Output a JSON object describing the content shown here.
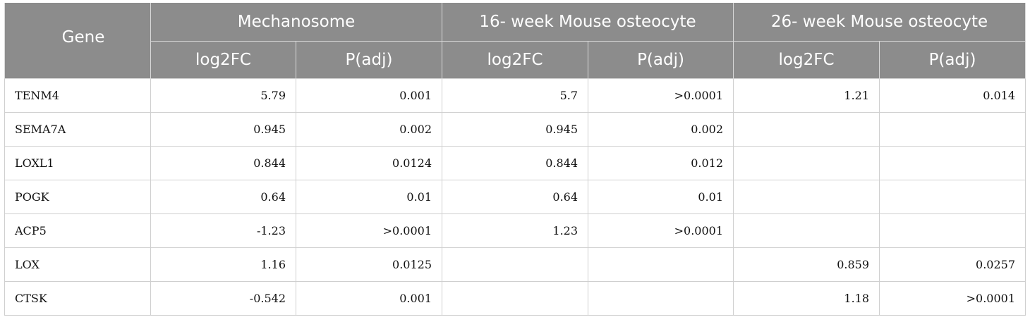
{
  "header": {
    "gene_label": "Gene",
    "groups": [
      "Mechanosome",
      "16- week Mouse osteocyte",
      "26- week Mouse osteocyte"
    ],
    "subheaders": [
      "log2FC",
      "P(adj)",
      "log2FC",
      "P(adj)",
      "log2FC",
      "P(adj)"
    ]
  },
  "rows": [
    {
      "gene": "TENM4",
      "cells": [
        "5.79",
        "0.001",
        "5.7",
        ">0.0001",
        "1.21",
        "0.014"
      ]
    },
    {
      "gene": "SEMA7A",
      "cells": [
        "0.945",
        "0.002",
        "0.945",
        "0.002",
        "",
        ""
      ]
    },
    {
      "gene": "LOXL1",
      "cells": [
        "0.844",
        "0.0124",
        "0.844",
        "0.012",
        "",
        ""
      ]
    },
    {
      "gene": "POGK",
      "cells": [
        "0.64",
        "0.01",
        "0.64",
        "0.01",
        "",
        ""
      ]
    },
    {
      "gene": "ACP5",
      "cells": [
        "-1.23",
        ">0.0001",
        "1.23",
        ">0.0001",
        "",
        ""
      ]
    },
    {
      "gene": "LOX",
      "cells": [
        "1.16",
        "0.0125",
        "",
        "",
        "0.859",
        "0.0257"
      ]
    },
    {
      "gene": "CTSK",
      "cells": [
        "-0.542",
        "0.001",
        "",
        "",
        "1.18",
        ">0.0001"
      ]
    }
  ]
}
